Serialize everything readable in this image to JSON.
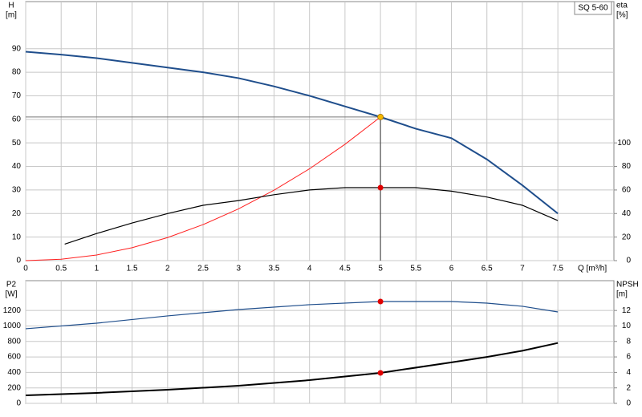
{
  "chart_data": [
    {
      "type": "line",
      "pump_label": "SQ 5-60",
      "y_label": "H",
      "y_unit": "[m]",
      "y2_label": "eta",
      "y2_unit": "[%]",
      "x_label": "Q [m³/h]",
      "xlim": [
        0,
        8.29
      ],
      "xticks": [
        0,
        0.5,
        1.0,
        1.5,
        2.0,
        2.5,
        3.0,
        3.5,
        4.0,
        4.5,
        5.0,
        5.5,
        6.0,
        6.5,
        7.0,
        7.5
      ],
      "xtick_labels": true,
      "ylim": [
        0,
        110
      ],
      "yticks": [
        0,
        10,
        20,
        30,
        40,
        50,
        60,
        70,
        80,
        90
      ],
      "y2lim": [
        0,
        220
      ],
      "y2ticks": [
        0,
        20,
        40,
        60,
        80,
        100
      ],
      "grid": true,
      "series": [
        {
          "color": "#1f4e8c",
          "width": 2,
          "x": [
            0,
            0.5,
            1,
            1.5,
            2,
            2.5,
            3,
            3.5,
            4,
            4.5,
            5,
            5.5,
            6,
            6.5,
            7,
            7.5
          ],
          "values": [
            88.7,
            87.5,
            86,
            84,
            82,
            80,
            77.5,
            74,
            70,
            65.5,
            61,
            56,
            52,
            43,
            32,
            20
          ]
        },
        {
          "color": "#ff2020",
          "width": 1,
          "x": [
            0,
            0.5,
            1,
            1.5,
            2,
            2.5,
            3,
            3.5,
            4,
            4.5,
            5
          ],
          "values": [
            0,
            0.6,
            2.4,
            5.5,
            9.8,
            15.3,
            22,
            29.9,
            39,
            49.4,
            61
          ]
        },
        {
          "color": "#000000",
          "width": 1.2,
          "axis": "y2",
          "x": [
            0.55,
            1,
            1.5,
            2,
            2.5,
            3,
            3.5,
            4,
            4.5,
            5,
            5.5,
            6,
            6.5,
            7,
            7.5
          ],
          "values": [
            14,
            23,
            32,
            40,
            47,
            51,
            56,
            60,
            62,
            62,
            62,
            59,
            54,
            47,
            34
          ]
        }
      ],
      "points": [
        {
          "x": 5,
          "y": 61,
          "color": "#f5b800",
          "guides": true
        },
        {
          "x": 5,
          "y": 62,
          "axis": "y2",
          "color": "#e00000"
        }
      ]
    },
    {
      "type": "line",
      "y_label": "P2",
      "y_unit": "[W]",
      "y2_label": "NPSH",
      "y2_unit": "[m]",
      "xlim": [
        0,
        8.29
      ],
      "xticks": [
        0,
        0.5,
        1.0,
        1.5,
        2.0,
        2.5,
        3.0,
        3.5,
        4.0,
        4.5,
        5.0,
        5.5,
        6.0,
        6.5,
        7.0,
        7.5
      ],
      "xtick_labels": false,
      "ylim": [
        0,
        1585
      ],
      "yticks": [
        0,
        200,
        400,
        600,
        800,
        1000,
        1200
      ],
      "y2lim": [
        0,
        15.85
      ],
      "y2ticks": [
        0,
        2,
        4,
        6,
        8,
        10,
        12
      ],
      "grid": true,
      "series": [
        {
          "color": "#1f4e8c",
          "width": 1.2,
          "x": [
            0,
            1,
            2,
            3,
            4,
            5,
            5.5,
            6,
            6.5,
            7,
            7.5
          ],
          "values": [
            964,
            1036,
            1130,
            1212,
            1275,
            1316,
            1316,
            1316,
            1295,
            1254,
            1181
          ]
        },
        {
          "color": "#000000",
          "width": 2,
          "axis": "y2",
          "x": [
            0,
            1,
            2,
            3,
            4,
            5,
            6,
            6.5,
            7,
            7.5
          ],
          "values": [
            1.04,
            1.35,
            1.76,
            2.28,
            3.0,
            3.94,
            5.3,
            6.0,
            6.8,
            7.8
          ]
        }
      ],
      "points": [
        {
          "x": 5,
          "y": 1316,
          "color": "#e00000"
        },
        {
          "x": 5,
          "y": 3.94,
          "axis": "y2",
          "color": "#e00000"
        }
      ]
    }
  ]
}
